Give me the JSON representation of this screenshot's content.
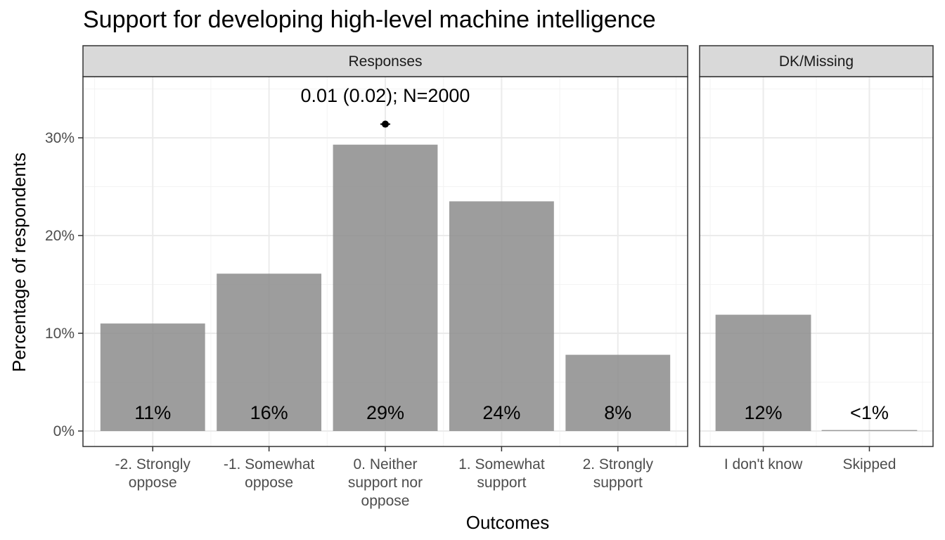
{
  "chart_data": {
    "type": "bar",
    "title": "Support for developing high-level machine intelligence",
    "xlabel": "Outcomes",
    "ylabel": "Percentage of respondents",
    "ylim": [
      0,
      36
    ],
    "yticks": [
      0,
      10,
      20,
      30
    ],
    "ytick_labels": [
      "0%",
      "10%",
      "20%",
      "30%"
    ],
    "grid": true,
    "facets": [
      {
        "name": "Responses",
        "categories": [
          [
            "-2. Strongly",
            "oppose"
          ],
          [
            "-1. Somewhat",
            "oppose"
          ],
          [
            "0. Neither",
            "support nor",
            "oppose"
          ],
          [
            "1. Somewhat",
            "support"
          ],
          [
            "2. Strongly",
            "support"
          ]
        ],
        "values": [
          11.0,
          16.1,
          29.3,
          23.5,
          7.8
        ],
        "labels": [
          "11%",
          "16%",
          "29%",
          "24%",
          "8%"
        ],
        "annotation": {
          "text": "0.01 (0.02); N=2000",
          "category_index": 2,
          "point_y": 31.4
        }
      },
      {
        "name": "DK/Missing",
        "categories": [
          [
            "I don't know"
          ],
          [
            "Skipped"
          ]
        ],
        "values": [
          11.9,
          0.1
        ],
        "labels": [
          "12%",
          "<1%"
        ]
      }
    ]
  }
}
